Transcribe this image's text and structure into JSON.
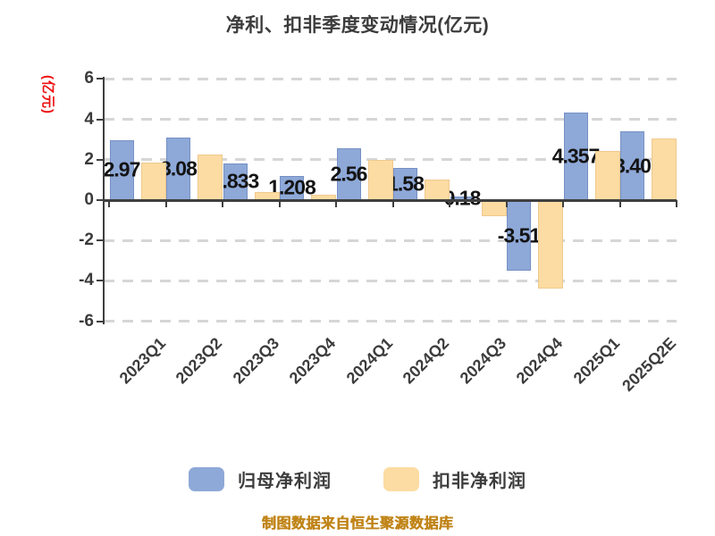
{
  "title": "净利、扣非季度变动情况(亿元)",
  "y_axis_unit": "(亿元)",
  "source_note": "制图数据来自恒生聚源数据库",
  "legend": {
    "items": [
      {
        "label": "归母净利润",
        "color": "#8EA9D8"
      },
      {
        "label": "扣非净利润",
        "color": "#FCDCA2"
      }
    ]
  },
  "chart_data": {
    "type": "bar",
    "title": "净利、扣非季度变动情况(亿元)",
    "ylabel": "(亿元)",
    "categories": [
      "2023Q1",
      "2023Q2",
      "2023Q3",
      "2023Q4",
      "2024Q1",
      "2024Q2",
      "2024Q3",
      "2024Q4",
      "2025Q1",
      "2025Q2E"
    ],
    "series": [
      {
        "name": "归母净利润",
        "color": "#8EA9D8",
        "border_color": "#7690C4",
        "values": [
          2.97,
          3.08,
          1.833,
          1.208,
          2.56,
          1.58,
          0.18,
          -3.51,
          4.357,
          3.4
        ],
        "data_labels": [
          "2.97",
          "3.08",
          "1.833",
          "1.208",
          "2.56",
          "1.58",
          "0.18",
          "-3.51",
          "4.357",
          "3.40"
        ]
      },
      {
        "name": "扣非净利润",
        "color": "#FCDCA2",
        "border_color": "#EFC98F",
        "values": [
          1.85,
          2.25,
          0.4,
          0.28,
          2.0,
          1.0,
          -0.8,
          -4.4,
          2.45,
          3.05
        ],
        "values_estimated_from_bars": true
      }
    ],
    "ylim": [
      -6,
      6
    ],
    "yticks": [
      6,
      4,
      2,
      0,
      -2,
      -4,
      -6
    ],
    "grid": "horizontal-dashed",
    "legend_position": "bottom"
  },
  "colors": {
    "title": "#3c3c3c",
    "axis": "#3f3f3f",
    "tick_label": "#3a3a3a",
    "data_label": "#141414",
    "gridline": "#d6d6d6",
    "y_unit_label": "#ee1111",
    "source_note": "#c08417",
    "background": "#ffffff"
  }
}
